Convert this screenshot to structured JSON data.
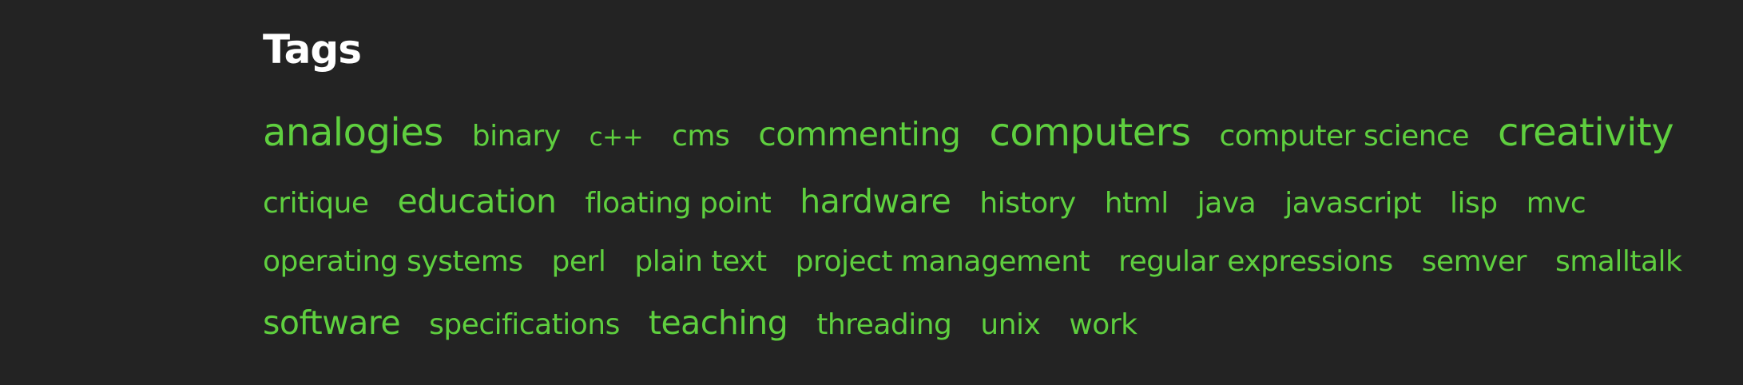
{
  "page": {
    "title": "Tags"
  },
  "colors": {
    "background": "#232323",
    "title": "#ffffff",
    "tag": "#5fcf3f"
  },
  "tags": {
    "analogies": "analogies",
    "binary": "binary",
    "cpp": "c++",
    "cms": "cms",
    "commenting": "commenting",
    "computers": "computers",
    "computer_science": "computer science",
    "creativity": "creativity",
    "critique": "critique",
    "education": "education",
    "floating_point": "floating point",
    "hardware": "hardware",
    "history": "history",
    "html": "html",
    "java": "java",
    "javascript": "javascript",
    "lisp": "lisp",
    "mvc": "mvc",
    "operating_systems": "operating systems",
    "perl": "perl",
    "plain_text": "plain text",
    "project_management": "project management",
    "regular_expressions": "regular expressions",
    "semver": "semver",
    "smalltalk": "smalltalk",
    "software": "software",
    "specifications": "specifications",
    "teaching": "teaching",
    "threading": "threading",
    "unix": "unix",
    "work": "work"
  }
}
